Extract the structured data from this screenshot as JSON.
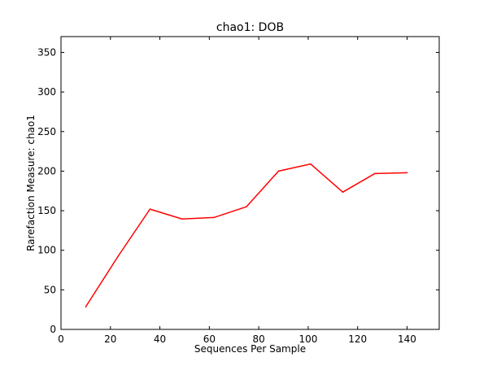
{
  "chart_data": {
    "type": "line",
    "title": "chao1: DOB",
    "xlabel": "Sequences Per Sample",
    "ylabel": "Rarefaction Measure: chao1",
    "xlim": [
      0,
      153
    ],
    "ylim": [
      0,
      370
    ],
    "xticks": [
      0,
      20,
      40,
      60,
      80,
      100,
      120,
      140
    ],
    "yticks": [
      0,
      50,
      100,
      150,
      200,
      250,
      300,
      350
    ],
    "grid": false,
    "series": [
      {
        "color": "#ff0000",
        "x": [
          10,
          23,
          36,
          49,
          62,
          75,
          88,
          101,
          114,
          127,
          140
        ],
        "y": [
          28.5,
          92,
          152,
          139.5,
          141.5,
          155,
          200,
          209,
          173.5,
          197,
          198
        ]
      }
    ]
  }
}
